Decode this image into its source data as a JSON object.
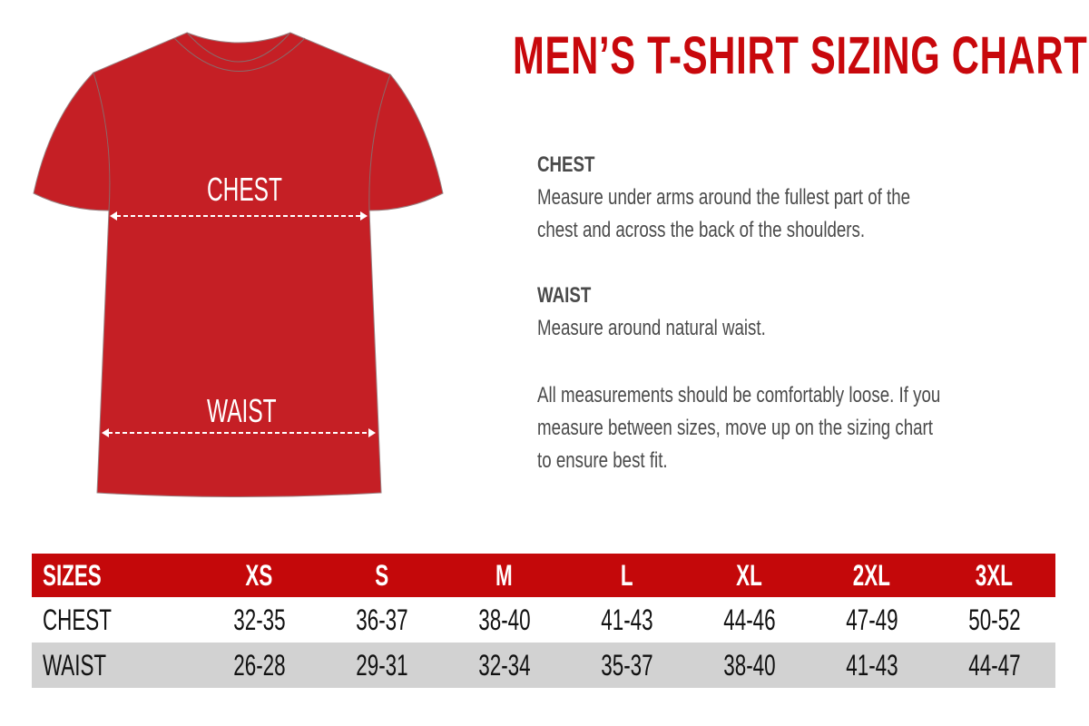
{
  "title": "MEN’S T-SHIRT SIZING CHART",
  "colors": {
    "accent": "#c4080a",
    "shirt": "#c51f25",
    "row_alt": "#d2d2d2",
    "text": "#4a4a4a"
  },
  "shirt": {
    "chest_label": "CHEST",
    "waist_label": "WAIST"
  },
  "info": {
    "chest_heading": "CHEST",
    "chest_lines": [
      "Measure under arms around the fullest part of the",
      "chest and across the back of the shoulders."
    ],
    "waist_heading": "WAIST",
    "waist_lines": [
      "Measure around natural waist."
    ],
    "note_lines": [
      "All measurements should be comfortably loose. If you",
      "measure between sizes, move up on the sizing chart",
      "to ensure best fit."
    ]
  },
  "table": {
    "header": [
      "SIZES",
      "XS",
      "S",
      "M",
      "L",
      "XL",
      "2XL",
      "3XL"
    ],
    "rows": [
      [
        "CHEST",
        "32-35",
        "36-37",
        "38-40",
        "41-43",
        "44-46",
        "47-49",
        "50-52"
      ],
      [
        "WAIST",
        "26-28",
        "29-31",
        "32-34",
        "35-37",
        "38-40",
        "41-43",
        "44-47"
      ]
    ]
  }
}
